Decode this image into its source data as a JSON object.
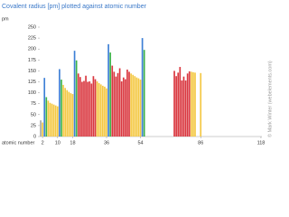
{
  "chart_data": {
    "type": "bar",
    "title": "Covalent radius [pm] plotted against atomic number",
    "y_label": "pm",
    "x_label": "atomic number",
    "credit": "© Mark Winter (webelements.com)",
    "x": [
      1,
      2,
      3,
      4,
      5,
      6,
      7,
      8,
      9,
      10,
      11,
      12,
      13,
      14,
      15,
      16,
      17,
      18,
      19,
      20,
      21,
      22,
      23,
      24,
      25,
      26,
      27,
      28,
      29,
      30,
      31,
      32,
      33,
      34,
      35,
      36,
      37,
      38,
      39,
      40,
      41,
      42,
      43,
      44,
      45,
      46,
      47,
      48,
      49,
      50,
      51,
      52,
      53,
      54,
      55,
      56,
      57,
      58,
      59,
      60,
      61,
      62,
      63,
      64,
      65,
      66,
      67,
      68,
      69,
      70,
      71,
      72,
      73,
      74,
      75,
      76,
      77,
      78,
      79,
      80,
      81,
      82,
      83,
      84,
      85,
      86,
      87,
      88,
      89,
      90,
      91,
      92,
      93,
      94,
      95,
      96,
      97,
      98,
      99,
      100,
      101,
      102,
      103,
      104,
      105,
      106,
      107,
      108,
      109,
      110,
      111,
      112,
      113,
      114,
      115,
      116,
      117,
      118
    ],
    "values": [
      37,
      32,
      134,
      90,
      82,
      77,
      75,
      73,
      71,
      69,
      154,
      130,
      118,
      111,
      106,
      102,
      99,
      97,
      196,
      174,
      144,
      136,
      125,
      127,
      139,
      125,
      126,
      121,
      138,
      131,
      126,
      122,
      119,
      116,
      114,
      110,
      211,
      192,
      162,
      148,
      137,
      145,
      156,
      126,
      135,
      131,
      153,
      148,
      144,
      141,
      138,
      135,
      133,
      130,
      225,
      198,
      null,
      null,
      null,
      null,
      null,
      null,
      null,
      null,
      null,
      null,
      null,
      null,
      null,
      null,
      null,
      150,
      138,
      146,
      159,
      128,
      137,
      128,
      144,
      149,
      148,
      147,
      146,
      null,
      null,
      145,
      null,
      null,
      null,
      null,
      null,
      null,
      null,
      null,
      null,
      null,
      null,
      null,
      null,
      null,
      null,
      null,
      null,
      null,
      null,
      null,
      null,
      null,
      null,
      null,
      null,
      null,
      null,
      null,
      null,
      null,
      null,
      null
    ],
    "colors": [
      "#a8a8a8",
      "#f4c842",
      "#3d7fd6",
      "#3cb34a",
      "#f4c842",
      "#f4c842",
      "#f4c842",
      "#f4c842",
      "#f4c842",
      "#f4c842",
      "#3d7fd6",
      "#3cb34a",
      "#f4c842",
      "#f4c842",
      "#f4c842",
      "#f4c842",
      "#f4c842",
      "#f4c842",
      "#3d7fd6",
      "#3cb34a",
      "#d9363e",
      "#d9363e",
      "#d9363e",
      "#d9363e",
      "#d9363e",
      "#d9363e",
      "#d9363e",
      "#d9363e",
      "#d9363e",
      "#d9363e",
      "#f4c842",
      "#f4c842",
      "#f4c842",
      "#f4c842",
      "#f4c842",
      "#f4c842",
      "#3d7fd6",
      "#3cb34a",
      "#d9363e",
      "#d9363e",
      "#d9363e",
      "#d9363e",
      "#d9363e",
      "#d9363e",
      "#d9363e",
      "#d9363e",
      "#d9363e",
      "#d9363e",
      "#f4c842",
      "#f4c842",
      "#f4c842",
      "#f4c842",
      "#f4c842",
      "#f4c842",
      "#3d7fd6",
      "#3cb34a",
      null,
      null,
      null,
      null,
      null,
      null,
      null,
      null,
      null,
      null,
      null,
      null,
      null,
      null,
      null,
      "#d9363e",
      "#d9363e",
      "#d9363e",
      "#d9363e",
      "#d9363e",
      "#d9363e",
      "#d9363e",
      "#d9363e",
      "#d9363e",
      "#f4c842",
      "#f4c842",
      "#f4c842",
      null,
      null,
      "#f4c842",
      null,
      null,
      null,
      null,
      null,
      null,
      null,
      null,
      null,
      null,
      null,
      null,
      null,
      null,
      null,
      null,
      null,
      null,
      null,
      null,
      null,
      null,
      null,
      null,
      null,
      null,
      null,
      null,
      null,
      null,
      null,
      null
    ],
    "xlim": [
      0.5,
      118.5
    ],
    "xticks": [
      2,
      10,
      18,
      36,
      54,
      86,
      118
    ],
    "ylim": [
      0,
      250
    ],
    "yticks": [
      0,
      25,
      50,
      75,
      100,
      125,
      150,
      175,
      200,
      225,
      250
    ]
  }
}
